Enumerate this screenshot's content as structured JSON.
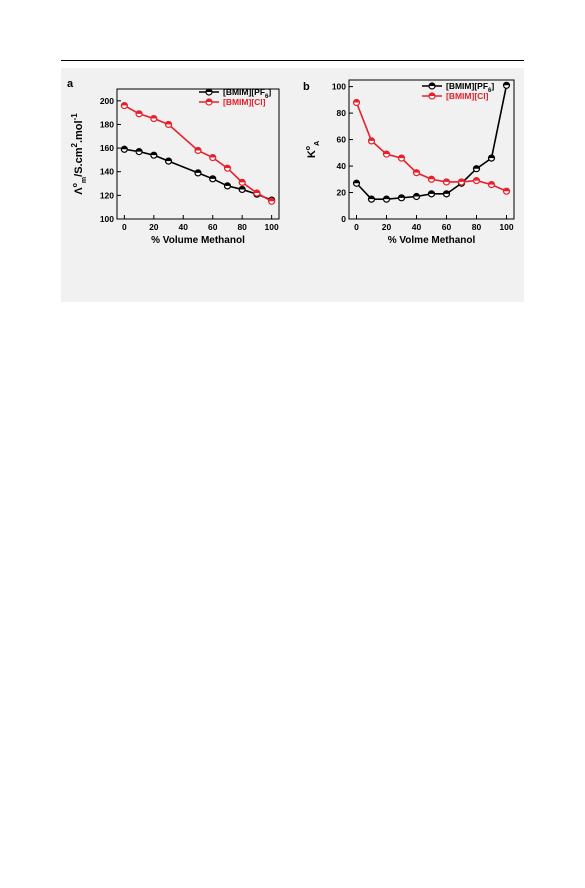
{
  "figure": {
    "panel_bg": "#f1f1f1"
  },
  "chart_data": [
    {
      "panel_label": "a",
      "type": "line",
      "xlabel": "% Volume Methanol",
      "ylabel_parts": {
        "main": "Λ",
        "sup": "o",
        "sub": "m",
        "unit": "/S.cm",
        "unit_sup": "2",
        "unit2": ".mol",
        "unit2_sup": "-1"
      },
      "xlim": [
        -5,
        105
      ],
      "ylim": [
        100,
        210
      ],
      "xticks": [
        0,
        20,
        40,
        60,
        80,
        100
      ],
      "yticks": [
        100,
        120,
        140,
        160,
        180,
        200
      ],
      "grid": false,
      "legend_position": "top-right",
      "x": [
        0,
        10,
        20,
        30,
        50,
        60,
        70,
        80,
        90,
        100
      ],
      "series": [
        {
          "name_main": "[BMIM][PF",
          "name_sub": "6",
          "name_tail": "]",
          "color": "#000000",
          "values": [
            159,
            157,
            154,
            149,
            139,
            134,
            128,
            125,
            121,
            116
          ]
        },
        {
          "name_main": "[BMIM][Cl]",
          "name_sub": "",
          "name_tail": "",
          "color": "#e8202a",
          "values": [
            196,
            189,
            185,
            180,
            158,
            152,
            143,
            131,
            122,
            115
          ]
        }
      ]
    },
    {
      "panel_label": "b",
      "type": "line",
      "xlabel": "% Volme Methanol",
      "ylabel_parts": {
        "main": "K",
        "sup": "o",
        "sub": "A"
      },
      "xlim": [
        -5,
        105
      ],
      "ylim": [
        0,
        105
      ],
      "xticks": [
        0,
        20,
        40,
        60,
        80,
        100
      ],
      "yticks": [
        0,
        20,
        40,
        60,
        80,
        100
      ],
      "grid": false,
      "legend_position": "top-right",
      "x": [
        0,
        10,
        20,
        30,
        40,
        50,
        60,
        70,
        80,
        90,
        100
      ],
      "series": [
        {
          "name_main": "[BMIM][PF",
          "name_sub": "6",
          "name_tail": "]",
          "color": "#000000",
          "values": [
            27,
            15,
            15,
            16,
            17,
            19,
            19,
            27,
            38,
            46,
            101
          ]
        },
        {
          "name_main": "[BMIM][Cl]",
          "name_sub": "",
          "name_tail": "",
          "color": "#e8202a",
          "values": [
            88,
            59,
            49,
            46,
            35,
            30,
            28,
            28,
            29,
            26,
            21
          ]
        }
      ]
    }
  ]
}
